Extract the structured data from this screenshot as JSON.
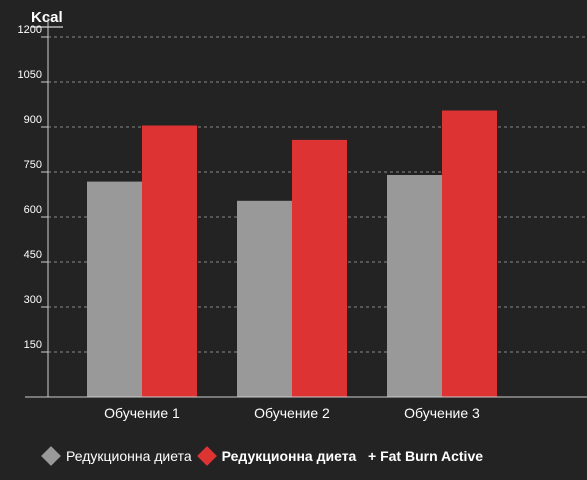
{
  "chart_data": {
    "type": "bar",
    "ylabel": "Kcal",
    "ylim": [
      0,
      1200
    ],
    "yticks": [
      150,
      300,
      450,
      600,
      750,
      900,
      1050,
      1200
    ],
    "grid": true,
    "legend_position": "bottom-left",
    "categories": [
      "Обучение 1",
      "Обучение 2",
      "Обучение 3"
    ],
    "series": [
      {
        "name": "Редукционна диета",
        "values": [
          718,
          654,
          740
        ],
        "color": "#999999"
      },
      {
        "name": "Редукционна диета   + Fat Burn Active",
        "values": [
          905,
          857,
          955
        ],
        "color": "#dd3333"
      }
    ]
  }
}
